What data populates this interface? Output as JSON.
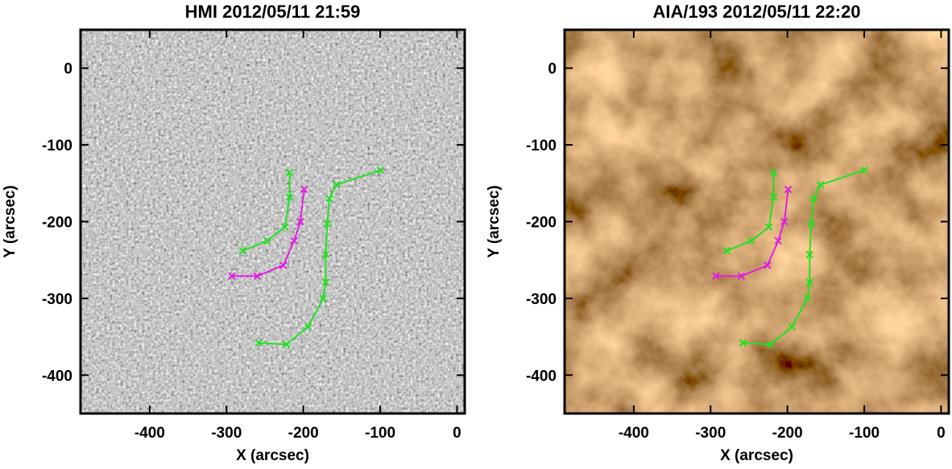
{
  "chart_data": [
    {
      "type": "line",
      "title": "HMI 2012/05/11 21:59",
      "xlabel": "X (arcsec)",
      "ylabel": "Y (arcsec)",
      "background": "hmi",
      "xlim": [
        -490,
        10
      ],
      "ylim": [
        -450,
        50
      ],
      "xticks": [
        -400,
        -300,
        -200,
        -100,
        0
      ],
      "yticks": [
        -400,
        -300,
        -200,
        -100,
        0
      ],
      "series": [
        {
          "color": "#22e022",
          "x": [
            -279,
            -247,
            -224,
            -218,
            -218
          ],
          "values": [
            -238,
            -225,
            -207,
            -168,
            -136
          ]
        },
        {
          "color": "#22e022",
          "x": [
            -100,
            -157,
            -166,
            -169,
            -171,
            -171,
            -174,
            -194,
            -222,
            -258
          ],
          "values": [
            -133,
            -152,
            -170,
            -203,
            -243,
            -279,
            -300,
            -337,
            -360,
            -358
          ]
        },
        {
          "color": "#e020e0",
          "x": [
            -293,
            -260,
            -226,
            -212,
            -204,
            -199
          ],
          "values": [
            -271,
            -271,
            -257,
            -225,
            -200,
            -158
          ]
        }
      ]
    },
    {
      "type": "line",
      "title": "AIA/193 2012/05/11 22:20",
      "xlabel": "X (arcsec)",
      "ylabel": "Y (arcsec)",
      "background": "aia",
      "xlim": [
        -490,
        10
      ],
      "ylim": [
        -450,
        50
      ],
      "xticks": [
        -400,
        -300,
        -200,
        -100,
        0
      ],
      "yticks": [
        -400,
        -300,
        -200,
        -100,
        0
      ],
      "series": [
        {
          "color": "#22e022",
          "x": [
            -279,
            -247,
            -224,
            -218,
            -218
          ],
          "values": [
            -238,
            -225,
            -207,
            -168,
            -136
          ]
        },
        {
          "color": "#22e022",
          "x": [
            -100,
            -157,
            -166,
            -169,
            -171,
            -171,
            -174,
            -194,
            -222,
            -258
          ],
          "values": [
            -133,
            -152,
            -170,
            -203,
            -243,
            -279,
            -300,
            -337,
            -360,
            -358
          ]
        },
        {
          "color": "#e020e0",
          "x": [
            -293,
            -260,
            -226,
            -212,
            -204,
            -199
          ],
          "values": [
            -271,
            -271,
            -257,
            -225,
            -200,
            -158
          ]
        }
      ]
    }
  ]
}
